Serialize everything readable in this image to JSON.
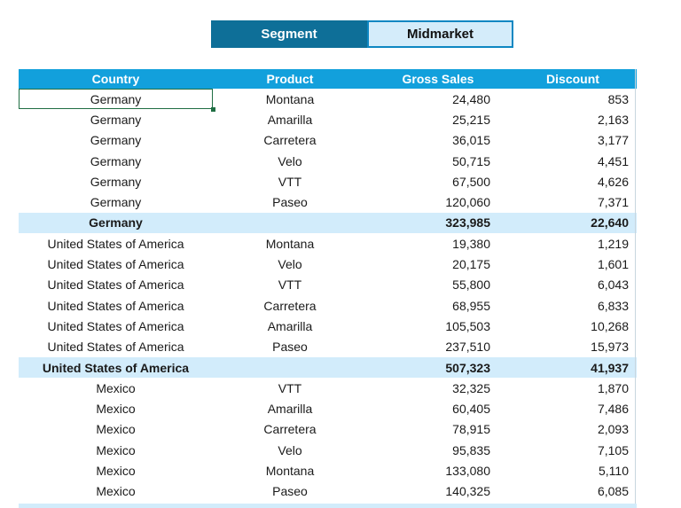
{
  "filter": {
    "label": "Segment",
    "value": "Midmarket"
  },
  "table": {
    "headers": [
      "Country",
      "Product",
      "Gross Sales",
      "Discount"
    ],
    "rows": [
      {
        "country": "Germany",
        "product": "Montana",
        "gross": "24,480",
        "discount": "853",
        "subtotal": false
      },
      {
        "country": "Germany",
        "product": "Amarilla",
        "gross": "25,215",
        "discount": "2,163",
        "subtotal": false
      },
      {
        "country": "Germany",
        "product": "Carretera",
        "gross": "36,015",
        "discount": "3,177",
        "subtotal": false
      },
      {
        "country": "Germany",
        "product": "Velo",
        "gross": "50,715",
        "discount": "4,451",
        "subtotal": false
      },
      {
        "country": "Germany",
        "product": "VTT",
        "gross": "67,500",
        "discount": "4,626",
        "subtotal": false
      },
      {
        "country": "Germany",
        "product": "Paseo",
        "gross": "120,060",
        "discount": "7,371",
        "subtotal": false
      },
      {
        "country": "Germany",
        "product": "",
        "gross": "323,985",
        "discount": "22,640",
        "subtotal": true
      },
      {
        "country": "United States of America",
        "product": "Montana",
        "gross": "19,380",
        "discount": "1,219",
        "subtotal": false
      },
      {
        "country": "United States of America",
        "product": "Velo",
        "gross": "20,175",
        "discount": "1,601",
        "subtotal": false
      },
      {
        "country": "United States of America",
        "product": "VTT",
        "gross": "55,800",
        "discount": "6,043",
        "subtotal": false
      },
      {
        "country": "United States of America",
        "product": "Carretera",
        "gross": "68,955",
        "discount": "6,833",
        "subtotal": false
      },
      {
        "country": "United States of America",
        "product": "Amarilla",
        "gross": "105,503",
        "discount": "10,268",
        "subtotal": false
      },
      {
        "country": "United States of America",
        "product": "Paseo",
        "gross": "237,510",
        "discount": "15,973",
        "subtotal": false
      },
      {
        "country": "United States of America",
        "product": "",
        "gross": "507,323",
        "discount": "41,937",
        "subtotal": true
      },
      {
        "country": "Mexico",
        "product": "VTT",
        "gross": "32,325",
        "discount": "1,870",
        "subtotal": false
      },
      {
        "country": "Mexico",
        "product": "Amarilla",
        "gross": "60,405",
        "discount": "7,486",
        "subtotal": false
      },
      {
        "country": "Mexico",
        "product": "Carretera",
        "gross": "78,915",
        "discount": "2,093",
        "subtotal": false
      },
      {
        "country": "Mexico",
        "product": "Velo",
        "gross": "95,835",
        "discount": "7,105",
        "subtotal": false
      },
      {
        "country": "Mexico",
        "product": "Montana",
        "gross": "133,080",
        "discount": "5,110",
        "subtotal": false
      },
      {
        "country": "Mexico",
        "product": "Paseo",
        "gross": "140,325",
        "discount": "6,085",
        "subtotal": false
      }
    ]
  },
  "colors": {
    "header_bg": "#12a0dc",
    "subtotal_bg": "#d2ecfb",
    "slicer_label_bg": "#0e6f98",
    "slicer_value_bg": "#d4ecfa",
    "selection": "#1f6e43"
  }
}
